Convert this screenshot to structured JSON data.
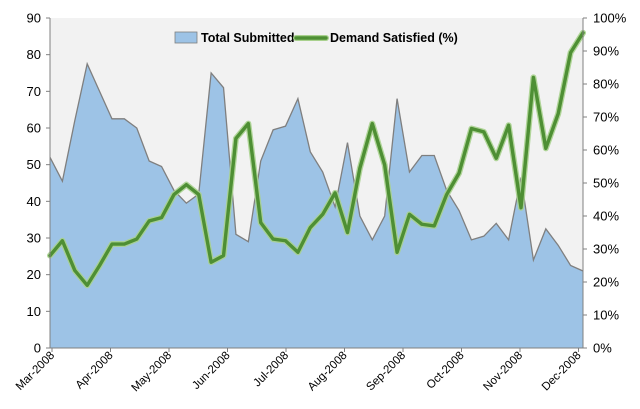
{
  "chart_data": {
    "type": "area",
    "title": "",
    "xlabel": "",
    "ylabel": "",
    "y2label": "",
    "x_ticks": [
      "Mar-2008",
      "Apr-2008",
      "May-2008",
      "Jun-2008",
      "Jul-2008",
      "Aug-2008",
      "Sep-2008",
      "Oct-2008",
      "Nov-2008",
      "Dec-2008"
    ],
    "ylim": [
      0,
      90
    ],
    "y_ticks": [
      0,
      10,
      20,
      30,
      40,
      50,
      60,
      70,
      80,
      90
    ],
    "y2lim": [
      0,
      100
    ],
    "y2_ticks": [
      "0%",
      "10%",
      "20%",
      "30%",
      "40%",
      "50%",
      "60%",
      "70%",
      "80%",
      "90%",
      "100%"
    ],
    "grid": false,
    "legend_position": "top-center",
    "colors": {
      "area_fill": "#9DC3E6",
      "area_stroke": "#7F7F7F",
      "line": "#4E8F34",
      "line_glow": "#A9D18E",
      "plot_bg": "#F2F2F2"
    },
    "series": [
      {
        "name": "Total Submitted",
        "type": "area",
        "axis": "left",
        "values": [
          52,
          45.5,
          62,
          77.5,
          70,
          62.5,
          62.5,
          60,
          51,
          49.5,
          43,
          39.5,
          42,
          75,
          71,
          31,
          29,
          51,
          59.5,
          60.5,
          68,
          53.5,
          48,
          38.5,
          56,
          36,
          29.5,
          36,
          68,
          48,
          52.5,
          52.5,
          43,
          37.5,
          29.5,
          30.5,
          34,
          29.5,
          46.5,
          24,
          32.5,
          28,
          22.5,
          21
        ]
      },
      {
        "name": "Demand Satisfied (%)",
        "type": "line",
        "axis": "right",
        "values": [
          0.28,
          0.325,
          0.235,
          0.19,
          0.25,
          0.315,
          0.315,
          0.33,
          0.385,
          0.395,
          0.465,
          0.495,
          0.465,
          0.26,
          0.28,
          0.635,
          0.68,
          0.38,
          0.33,
          0.325,
          0.29,
          0.365,
          0.405,
          0.47,
          0.35,
          0.545,
          0.68,
          0.555,
          0.29,
          0.405,
          0.375,
          0.37,
          0.465,
          0.53,
          0.665,
          0.655,
          0.575,
          0.675,
          0.425,
          0.82,
          0.605,
          0.71,
          0.895,
          0.955
        ]
      }
    ]
  }
}
